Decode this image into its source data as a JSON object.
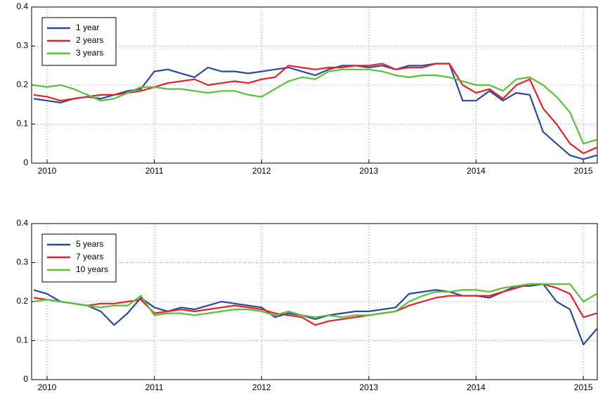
{
  "chart_data": [
    {
      "type": "line",
      "x": [
        2009.875,
        2010,
        2010.125,
        2010.25,
        2010.375,
        2010.5,
        2010.625,
        2010.75,
        2010.875,
        2011,
        2011.125,
        2011.25,
        2011.375,
        2011.5,
        2011.625,
        2011.75,
        2011.875,
        2012,
        2012.125,
        2012.25,
        2012.375,
        2012.5,
        2012.625,
        2012.75,
        2012.875,
        2013,
        2013.125,
        2013.25,
        2013.375,
        2013.5,
        2013.625,
        2013.75,
        2013.875,
        2014,
        2014.125,
        2014.25,
        2014.375,
        2014.5,
        2014.625,
        2014.75,
        2014.875,
        2015,
        2015.125
      ],
      "series": [
        {
          "name": "1 year",
          "color": "#2b4a9e",
          "values": [
            0.165,
            0.16,
            0.155,
            0.165,
            0.17,
            0.165,
            0.175,
            0.185,
            0.19,
            0.235,
            0.24,
            0.23,
            0.22,
            0.245,
            0.235,
            0.235,
            0.23,
            0.235,
            0.24,
            0.245,
            0.235,
            0.225,
            0.24,
            0.25,
            0.25,
            0.245,
            0.25,
            0.24,
            0.25,
            0.25,
            0.255,
            0.255,
            0.16,
            0.16,
            0.185,
            0.16,
            0.18,
            0.175,
            0.08,
            0.05,
            0.02,
            0.01,
            0.02
          ]
        },
        {
          "name": "2 years",
          "color": "#e8202a",
          "values": [
            0.175,
            0.17,
            0.16,
            0.165,
            0.17,
            0.175,
            0.175,
            0.18,
            0.185,
            0.195,
            0.205,
            0.21,
            0.215,
            0.2,
            0.205,
            0.21,
            0.205,
            0.215,
            0.22,
            0.25,
            0.245,
            0.24,
            0.245,
            0.245,
            0.25,
            0.25,
            0.255,
            0.24,
            0.245,
            0.245,
            0.255,
            0.255,
            0.2,
            0.18,
            0.19,
            0.165,
            0.2,
            0.215,
            0.14,
            0.1,
            0.05,
            0.025,
            0.04
          ]
        },
        {
          "name": "3 years",
          "color": "#5cbf3a",
          "values": [
            0.2,
            0.195,
            0.2,
            0.19,
            0.175,
            0.16,
            0.165,
            0.18,
            0.195,
            0.195,
            0.19,
            0.19,
            0.185,
            0.18,
            0.185,
            0.185,
            0.175,
            0.17,
            0.19,
            0.21,
            0.22,
            0.215,
            0.235,
            0.24,
            0.24,
            0.24,
            0.235,
            0.225,
            0.22,
            0.225,
            0.225,
            0.22,
            0.21,
            0.2,
            0.2,
            0.185,
            0.215,
            0.22,
            0.2,
            0.17,
            0.13,
            0.05,
            0.06
          ]
        }
      ],
      "xlim": [
        2009.856,
        2015.13
      ],
      "ylim": [
        0,
        0.4
      ],
      "xticks": [
        2010,
        2011,
        2012,
        2013,
        2014,
        2015
      ],
      "yticks": [
        0,
        0.1,
        0.2,
        0.3,
        0.4
      ],
      "grid": true,
      "legend": "upper-left"
    },
    {
      "type": "line",
      "x": [
        2009.875,
        2010,
        2010.125,
        2010.25,
        2010.375,
        2010.5,
        2010.625,
        2010.75,
        2010.875,
        2011,
        2011.125,
        2011.25,
        2011.375,
        2011.5,
        2011.625,
        2011.75,
        2011.875,
        2012,
        2012.125,
        2012.25,
        2012.375,
        2012.5,
        2012.625,
        2012.75,
        2012.875,
        2013,
        2013.125,
        2013.25,
        2013.375,
        2013.5,
        2013.625,
        2013.75,
        2013.875,
        2014,
        2014.125,
        2014.25,
        2014.375,
        2014.5,
        2014.625,
        2014.75,
        2014.875,
        2015,
        2015.125
      ],
      "series": [
        {
          "name": "5 years",
          "color": "#2b4a9e",
          "values": [
            0.23,
            0.22,
            0.2,
            0.195,
            0.19,
            0.175,
            0.14,
            0.17,
            0.21,
            0.185,
            0.175,
            0.185,
            0.18,
            0.19,
            0.2,
            0.195,
            0.19,
            0.185,
            0.16,
            0.17,
            0.165,
            0.155,
            0.165,
            0.17,
            0.175,
            0.175,
            0.18,
            0.185,
            0.22,
            0.225,
            0.23,
            0.225,
            0.215,
            0.215,
            0.21,
            0.225,
            0.24,
            0.24,
            0.245,
            0.2,
            0.18,
            0.09,
            0.13
          ]
        },
        {
          "name": "7 years",
          "color": "#e8202a",
          "values": [
            0.21,
            0.205,
            0.2,
            0.195,
            0.19,
            0.195,
            0.195,
            0.2,
            0.205,
            0.17,
            0.175,
            0.18,
            0.175,
            0.18,
            0.185,
            0.19,
            0.185,
            0.18,
            0.17,
            0.165,
            0.16,
            0.14,
            0.15,
            0.155,
            0.16,
            0.165,
            0.17,
            0.175,
            0.19,
            0.2,
            0.21,
            0.215,
            0.215,
            0.215,
            0.215,
            0.225,
            0.235,
            0.245,
            0.245,
            0.235,
            0.22,
            0.16,
            0.17
          ]
        },
        {
          "name": "10 years",
          "color": "#5cbf3a",
          "values": [
            0.2,
            0.205,
            0.2,
            0.195,
            0.19,
            0.185,
            0.19,
            0.19,
            0.215,
            0.165,
            0.17,
            0.17,
            0.165,
            0.17,
            0.175,
            0.18,
            0.18,
            0.175,
            0.165,
            0.175,
            0.165,
            0.16,
            0.165,
            0.16,
            0.165,
            0.165,
            0.17,
            0.175,
            0.2,
            0.215,
            0.225,
            0.225,
            0.23,
            0.23,
            0.225,
            0.235,
            0.24,
            0.245,
            0.245,
            0.245,
            0.245,
            0.2,
            0.22
          ]
        }
      ],
      "xlim": [
        2009.856,
        2015.13
      ],
      "ylim": [
        0,
        0.4
      ],
      "xticks": [
        2010,
        2011,
        2012,
        2013,
        2014,
        2015
      ],
      "yticks": [
        0,
        0.1,
        0.2,
        0.3,
        0.4
      ],
      "grid": true,
      "legend": "upper-left"
    }
  ]
}
